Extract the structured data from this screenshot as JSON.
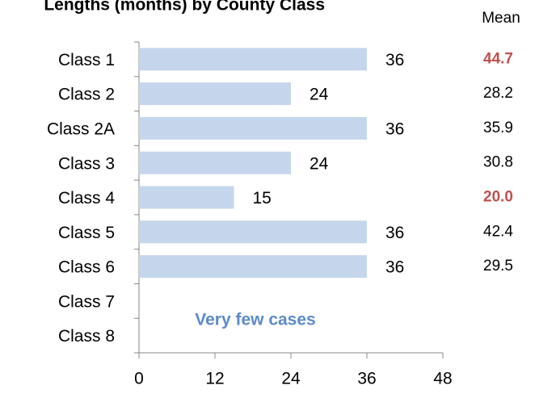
{
  "chart_data": {
    "type": "bar",
    "orientation": "horizontal",
    "title": "Lengths (months) by County Class",
    "categories": [
      "Class 1",
      "Class 2",
      "Class 2A",
      "Class 3",
      "Class 4",
      "Class 5",
      "Class 6",
      "Class 7",
      "Class 8"
    ],
    "values": [
      36,
      24,
      36,
      24,
      15,
      36,
      36,
      null,
      null
    ],
    "color": "#c5d6ec",
    "xlim": [
      0,
      48
    ],
    "xticks": [
      0,
      12,
      24,
      36,
      48
    ],
    "annotation": "Very few cases",
    "mean": {
      "header": "Mean",
      "values": [
        "44.7",
        "28.2",
        "35.9",
        "30.8",
        "20.0",
        "42.4",
        "29.5"
      ],
      "highlight": [
        true,
        false,
        false,
        false,
        true,
        false,
        false
      ],
      "highlight_color": "#c0504d"
    }
  }
}
